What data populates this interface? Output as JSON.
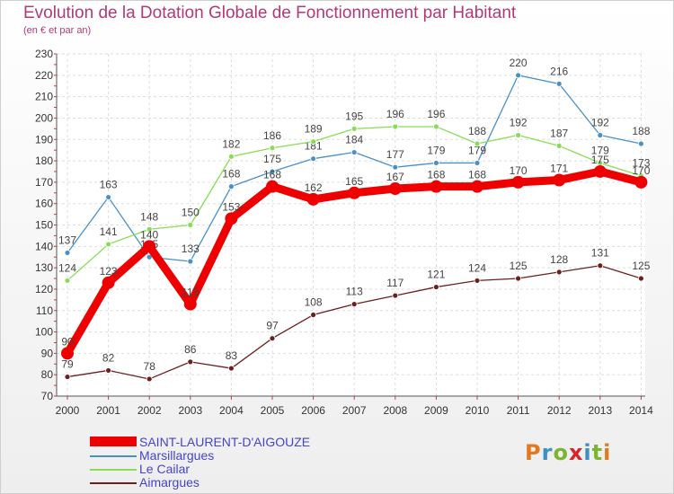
{
  "title": "Evolution de la Dotation Globale de Fonctionnement par Habitant",
  "subtitle": "(en € et par an)",
  "logo": "Proxiti",
  "logo_colors": [
    "#e07a1f",
    "#3d8fc4",
    "#7bb630",
    "#d6262a",
    "#3d8fc4",
    "#7bb630",
    "#e07a1f"
  ],
  "chart_data": {
    "type": "line",
    "categories": [
      "2000",
      "2001",
      "2002",
      "2003",
      "2004",
      "2005",
      "2006",
      "2007",
      "2008",
      "2009",
      "2010",
      "2011",
      "2012",
      "2013",
      "2014"
    ],
    "ylim": [
      70,
      230
    ],
    "yticks": [
      70,
      80,
      90,
      100,
      110,
      120,
      130,
      140,
      150,
      160,
      170,
      180,
      190,
      200,
      210,
      220,
      230
    ],
    "grid": true,
    "legend_position": "bottom-left",
    "series": [
      {
        "name": "SAINT-LAURENT-D'AIGOUZE",
        "color": "#ee0000",
        "values": [
          90,
          123,
          140,
          113,
          153,
          168,
          162,
          165,
          167,
          168,
          168,
          170,
          171,
          175,
          170
        ]
      },
      {
        "name": "Marsillargues",
        "color": "#4a90c8",
        "values": [
          137,
          163,
          135,
          133,
          168,
          175,
          181,
          184,
          177,
          179,
          179,
          220,
          216,
          192,
          188
        ]
      },
      {
        "name": "Le Cailar",
        "color": "#88dd55",
        "values": [
          124,
          141,
          148,
          150,
          182,
          186,
          189,
          195,
          196,
          196,
          188,
          192,
          187,
          179,
          173
        ]
      },
      {
        "name": "Aimargues",
        "color": "#6b1f1f",
        "values": [
          79,
          82,
          78,
          86,
          83,
          97,
          108,
          113,
          117,
          121,
          124,
          125,
          128,
          131,
          125
        ]
      }
    ]
  },
  "legend_label_color": "#4444cc"
}
